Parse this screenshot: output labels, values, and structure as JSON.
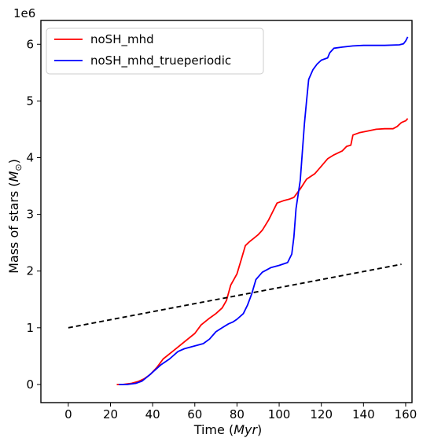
{
  "chart_data": {
    "type": "line",
    "xlabel_main": "Time (",
    "xlabel_unit": "Myr",
    "xlabel_end": ")",
    "ylabel_main": "Mass of stars (",
    "ylabel_unit": "M",
    "ylabel_unit_sub": "⊙",
    "ylabel_end": ")",
    "yscale_label": "1e6",
    "xlim": [
      -13,
      163
    ],
    "ylim": [
      -0.32,
      6.42
    ],
    "xticks": [
      0,
      20,
      40,
      60,
      80,
      100,
      120,
      140,
      160
    ],
    "xtick_labels": [
      "0",
      "20",
      "40",
      "60",
      "80",
      "100",
      "120",
      "140",
      "160"
    ],
    "yticks": [
      0,
      1,
      2,
      3,
      4,
      5,
      6
    ],
    "ytick_labels": [
      "0",
      "1",
      "2",
      "3",
      "4",
      "5",
      "6"
    ],
    "grid": false,
    "legend_position": "upper-left",
    "series": [
      {
        "name": "noSH_mhd",
        "color": "#ff0000",
        "style": "solid",
        "points": [
          [
            23,
            0.0
          ],
          [
            26,
            0.0
          ],
          [
            30,
            0.02
          ],
          [
            33,
            0.05
          ],
          [
            36,
            0.1
          ],
          [
            39,
            0.18
          ],
          [
            42,
            0.3
          ],
          [
            45,
            0.45
          ],
          [
            50,
            0.6
          ],
          [
            55,
            0.75
          ],
          [
            60,
            0.9
          ],
          [
            63,
            1.05
          ],
          [
            67,
            1.17
          ],
          [
            70,
            1.25
          ],
          [
            73,
            1.35
          ],
          [
            75,
            1.48
          ],
          [
            77,
            1.75
          ],
          [
            80,
            1.95
          ],
          [
            82,
            2.2
          ],
          [
            84,
            2.45
          ],
          [
            86,
            2.52
          ],
          [
            88,
            2.58
          ],
          [
            90,
            2.64
          ],
          [
            92,
            2.72
          ],
          [
            95,
            2.9
          ],
          [
            97,
            3.05
          ],
          [
            99,
            3.2
          ],
          [
            102,
            3.24
          ],
          [
            105,
            3.27
          ],
          [
            107,
            3.3
          ],
          [
            110,
            3.45
          ],
          [
            113,
            3.62
          ],
          [
            117,
            3.72
          ],
          [
            120,
            3.85
          ],
          [
            123,
            3.98
          ],
          [
            126,
            4.05
          ],
          [
            130,
            4.12
          ],
          [
            132,
            4.2
          ],
          [
            134,
            4.22
          ],
          [
            135,
            4.4
          ],
          [
            138,
            4.44
          ],
          [
            142,
            4.47
          ],
          [
            146,
            4.5
          ],
          [
            150,
            4.51
          ],
          [
            154,
            4.51
          ],
          [
            156,
            4.55
          ],
          [
            158,
            4.62
          ],
          [
            160,
            4.65
          ],
          [
            161,
            4.69
          ]
        ]
      },
      {
        "name": "noSH_mhd_trueperiodic",
        "color": "#0000ff",
        "style": "solid",
        "points": [
          [
            24,
            0.0
          ],
          [
            28,
            0.0
          ],
          [
            32,
            0.02
          ],
          [
            35,
            0.06
          ],
          [
            38,
            0.15
          ],
          [
            41,
            0.25
          ],
          [
            44,
            0.35
          ],
          [
            48,
            0.45
          ],
          [
            52,
            0.58
          ],
          [
            55,
            0.63
          ],
          [
            60,
            0.68
          ],
          [
            64,
            0.72
          ],
          [
            67,
            0.8
          ],
          [
            70,
            0.93
          ],
          [
            73,
            1.0
          ],
          [
            76,
            1.07
          ],
          [
            78,
            1.1
          ],
          [
            80,
            1.15
          ],
          [
            83,
            1.25
          ],
          [
            85,
            1.4
          ],
          [
            87,
            1.6
          ],
          [
            89,
            1.85
          ],
          [
            92,
            1.98
          ],
          [
            96,
            2.06
          ],
          [
            100,
            2.1
          ],
          [
            104,
            2.15
          ],
          [
            106,
            2.3
          ],
          [
            107,
            2.6
          ],
          [
            108,
            3.1
          ],
          [
            110,
            3.6
          ],
          [
            112,
            4.6
          ],
          [
            113,
            5.0
          ],
          [
            114,
            5.38
          ],
          [
            116,
            5.55
          ],
          [
            118,
            5.65
          ],
          [
            120,
            5.72
          ],
          [
            123,
            5.76
          ],
          [
            124,
            5.85
          ],
          [
            126,
            5.93
          ],
          [
            130,
            5.95
          ],
          [
            135,
            5.97
          ],
          [
            140,
            5.98
          ],
          [
            150,
            5.98
          ],
          [
            157,
            5.99
          ],
          [
            159,
            6.01
          ],
          [
            160,
            6.06
          ],
          [
            161,
            6.13
          ]
        ]
      },
      {
        "name": "",
        "color": "#000000",
        "style": "dashed",
        "points": [
          [
            0,
            1.0
          ],
          [
            158,
            2.12
          ]
        ]
      }
    ]
  }
}
